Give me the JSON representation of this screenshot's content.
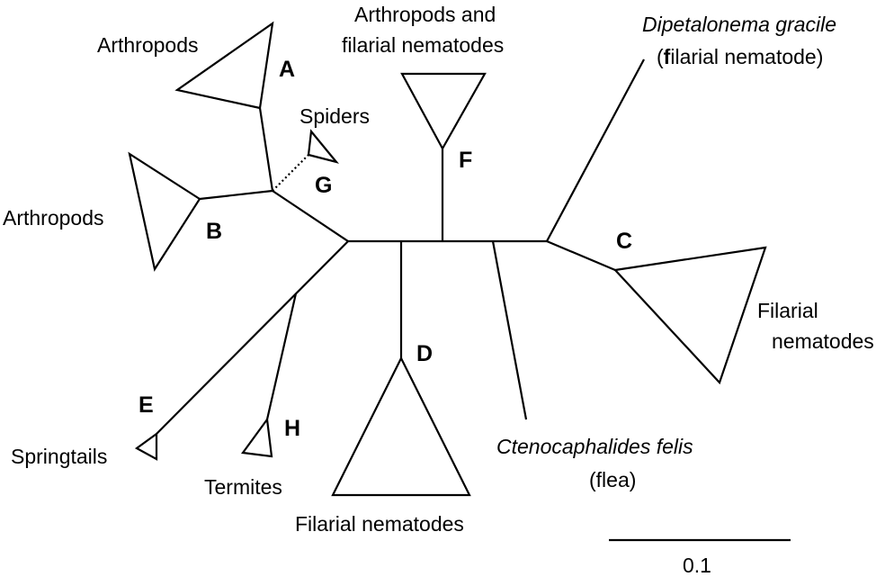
{
  "clades": {
    "A": {
      "letter": "A",
      "taxon": "Arthropods"
    },
    "B": {
      "letter": "B",
      "taxon": "Arthropods"
    },
    "C": {
      "letter": "C",
      "taxon_line1": "Filarial",
      "taxon_line2": "nematodes"
    },
    "D": {
      "letter": "D",
      "taxon": "Filarial nematodes"
    },
    "E": {
      "letter": "E",
      "taxon": "Springtails"
    },
    "F": {
      "letter": "F",
      "taxon_line1": "Arthropods and",
      "taxon_line2": "filarial nematodes"
    },
    "G": {
      "letter": "G",
      "taxon": "Spiders"
    },
    "H": {
      "letter": "H",
      "taxon": "Termites"
    }
  },
  "leaves": {
    "dipetalonema": {
      "name": "Dipetalonema gracile",
      "note_open": "(",
      "note_bold": "f",
      "note_rest": "ilarial nematode)"
    },
    "ctenocephalides": {
      "name": "Ctenocaphalides felis",
      "note": "(flea)"
    }
  },
  "scale_bar": {
    "label": "0.1",
    "value": 0.1
  }
}
